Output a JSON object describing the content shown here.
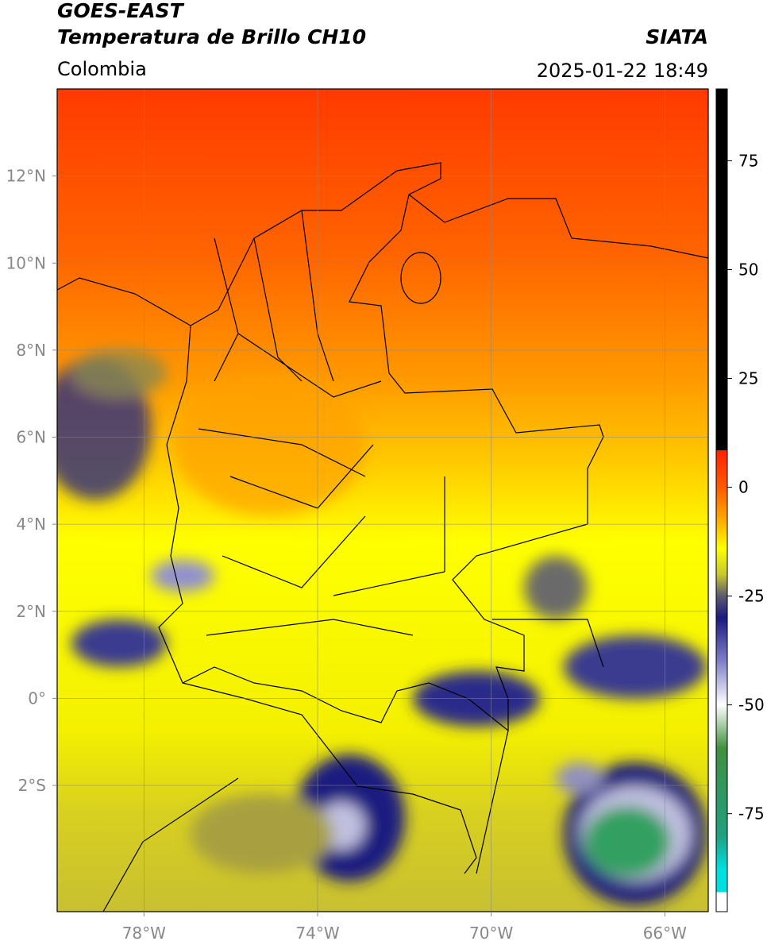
{
  "header": {
    "satellite": "GOES-EAST",
    "title": "Temperatura de Brillo CH10",
    "source": "SIATA",
    "region": "Colombia",
    "timestamp": "2025-01-22 18:49"
  },
  "map": {
    "lon_range": [
      -80,
      -65
    ],
    "lat_range": [
      -4.9,
      14
    ],
    "grid": true,
    "lon_ticks": [
      {
        "value": -78,
        "label": "78°W"
      },
      {
        "value": -74,
        "label": "74°W"
      },
      {
        "value": -70,
        "label": "70°W"
      },
      {
        "value": -66,
        "label": "66°W"
      }
    ],
    "lat_ticks": [
      {
        "value": 12,
        "label": "12°N"
      },
      {
        "value": 10,
        "label": "10°N"
      },
      {
        "value": 8,
        "label": "8°N"
      },
      {
        "value": 6,
        "label": "6°N"
      },
      {
        "value": 4,
        "label": "4°N"
      },
      {
        "value": 2,
        "label": "2°N"
      },
      {
        "value": 0,
        "label": "0°"
      },
      {
        "value": -2,
        "label": "2°S"
      }
    ]
  },
  "colorbar": {
    "range": [
      -97.5,
      91.5
    ],
    "ticks": [
      75,
      50,
      25,
      0,
      -25,
      -50,
      -75
    ],
    "colors": [
      [
        91.5,
        "#000000"
      ],
      [
        8.5,
        "#000000"
      ],
      [
        8.5,
        "#ff2000"
      ],
      [
        0,
        "#ff5a00"
      ],
      [
        -8,
        "#ffb000"
      ],
      [
        -14,
        "#ffff00"
      ],
      [
        -20,
        "#c8c832"
      ],
      [
        -25,
        "#5a5a6e"
      ],
      [
        -30,
        "#1a1a80"
      ],
      [
        -40,
        "#8080c8"
      ],
      [
        -50,
        "#ffffff"
      ],
      [
        -60,
        "#409040"
      ],
      [
        -80,
        "#20a080"
      ],
      [
        -88,
        "#00e0e0"
      ],
      [
        -93,
        "#00e0e0"
      ],
      [
        -93,
        "#ffffff"
      ],
      [
        -97.5,
        "#ffffff"
      ]
    ]
  }
}
